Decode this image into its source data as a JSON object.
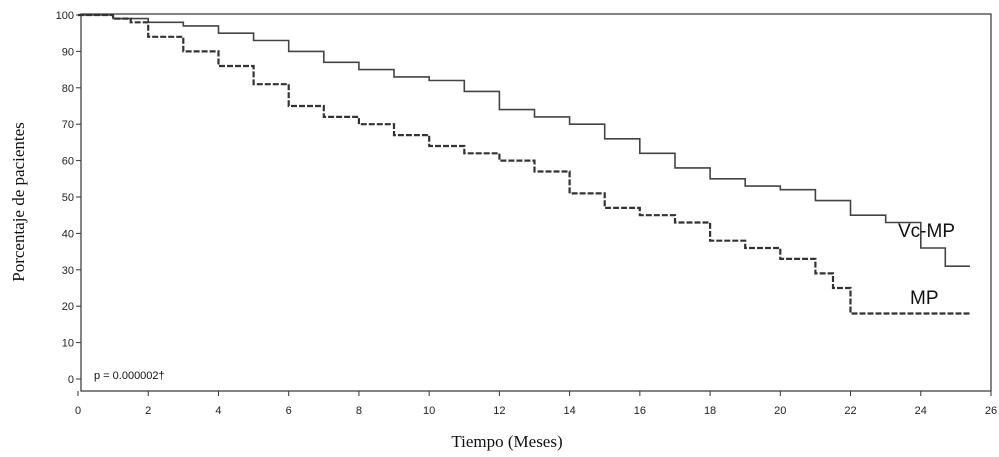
{
  "chart_data": {
    "type": "line",
    "xlabel": "Tiempo (Meses)",
    "ylabel": "Porcentaje de pacientes",
    "xlim": [
      0,
      26
    ],
    "ylim": [
      0,
      100
    ],
    "xticks": [
      "0",
      "2",
      "4",
      "6",
      "8",
      "10",
      "12",
      "14",
      "16",
      "18",
      "20",
      "22",
      "24",
      "26"
    ],
    "yticks": [
      "0",
      "10",
      "20",
      "30",
      "40",
      "50",
      "60",
      "70",
      "80",
      "90",
      "100"
    ],
    "annotation": "p = 0.000002†",
    "series": [
      {
        "name": "Vc-MP",
        "color": "#444444",
        "style": "solid",
        "x": [
          0,
          1,
          2,
          3,
          4,
          5,
          6,
          7,
          8,
          9,
          10,
          11,
          12,
          13,
          14,
          15,
          16,
          17,
          18,
          19,
          20,
          21,
          22,
          23,
          24,
          24.7,
          25.4
        ],
        "y": [
          100,
          99,
          98,
          97,
          95,
          93,
          90,
          87,
          85,
          83,
          82,
          79,
          74,
          72,
          70,
          66,
          62,
          58,
          55,
          53,
          52,
          49,
          45,
          43,
          36,
          31,
          31
        ]
      },
      {
        "name": "MP",
        "color": "#333333",
        "style": "dashed",
        "x": [
          0,
          1,
          1.5,
          2,
          3,
          4,
          5,
          6,
          7,
          8,
          9,
          10,
          11,
          12,
          13,
          14,
          15,
          16,
          17,
          18,
          19,
          20,
          21,
          21.5,
          22,
          23,
          24,
          25.4
        ],
        "y": [
          100,
          99,
          98,
          94,
          90,
          86,
          81,
          75,
          72,
          70,
          67,
          64,
          62,
          60,
          57,
          51,
          47,
          45,
          43,
          38,
          36,
          33,
          29,
          25,
          18,
          18,
          18,
          18
        ]
      }
    ]
  }
}
